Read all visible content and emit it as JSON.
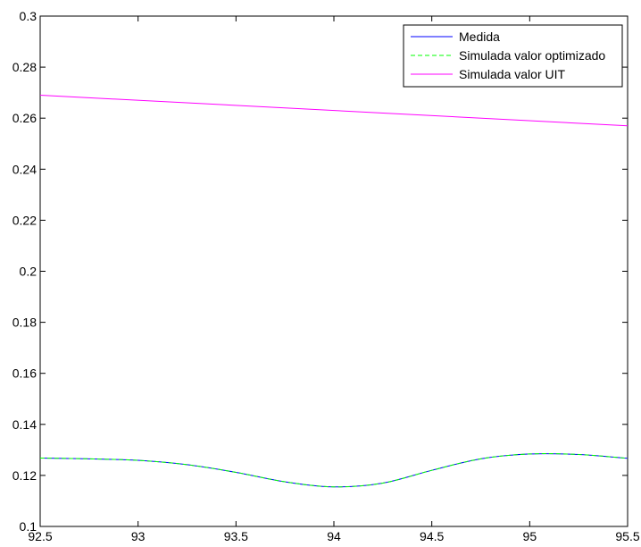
{
  "chart_data": {
    "type": "line",
    "title": "",
    "xlabel": "",
    "ylabel": "",
    "xlim": [
      92.5,
      95.5
    ],
    "ylim": [
      0.1,
      0.3
    ],
    "xticks": [
      92.5,
      93,
      93.5,
      94,
      94.5,
      95,
      95.5
    ],
    "xtick_labels": [
      "92.5",
      "93",
      "93.5",
      "94",
      "94.5",
      "95",
      "95.5"
    ],
    "yticks": [
      0.1,
      0.12,
      0.14,
      0.16,
      0.18,
      0.2,
      0.22,
      0.24,
      0.26,
      0.28,
      0.3
    ],
    "ytick_labels": [
      "0.1",
      "0.12",
      "0.14",
      "0.16",
      "0.18",
      "0.2",
      "0.22",
      "0.24",
      "0.26",
      "0.28",
      "0.3"
    ],
    "grid": false,
    "legend_position": "top-right",
    "series": [
      {
        "name": "Medida",
        "color": "#0000ff",
        "style": "solid",
        "x": [
          92.5,
          92.75,
          93.0,
          93.25,
          93.5,
          93.75,
          94.0,
          94.25,
          94.5,
          94.75,
          95.0,
          95.25,
          95.5
        ],
        "y": [
          0.1268,
          0.1265,
          0.1259,
          0.1242,
          0.1212,
          0.1175,
          0.1155,
          0.117,
          0.122,
          0.1265,
          0.1284,
          0.1282,
          0.1267
        ]
      },
      {
        "name": "Simulada valor optimizado",
        "color": "#00ff00",
        "style": "dashed",
        "x": [
          92.5,
          92.75,
          93.0,
          93.25,
          93.5,
          93.75,
          94.0,
          94.25,
          94.5,
          94.75,
          95.0,
          95.25,
          95.5
        ],
        "y": [
          0.1268,
          0.1265,
          0.1259,
          0.1242,
          0.1212,
          0.1175,
          0.1155,
          0.117,
          0.122,
          0.1265,
          0.1284,
          0.1282,
          0.1267
        ]
      },
      {
        "name": "Simulada valor UIT",
        "color": "#ff00ff",
        "style": "solid",
        "x": [
          92.5,
          95.5
        ],
        "y": [
          0.269,
          0.257
        ]
      }
    ]
  }
}
